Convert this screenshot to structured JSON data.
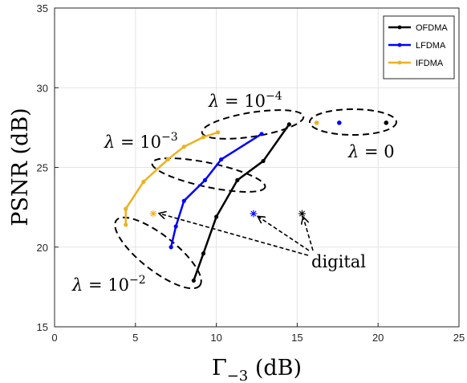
{
  "chart_data": {
    "type": "line",
    "title": "",
    "xlabel": "Γ₋₃ (dB)",
    "ylabel": "PSNR (dB)",
    "xlim": [
      0,
      25
    ],
    "ylim": [
      15,
      35
    ],
    "xticks": [
      0,
      5,
      10,
      15,
      20,
      25
    ],
    "yticks": [
      15,
      20,
      25,
      30,
      35
    ],
    "grid": true,
    "legend_position": "top-right",
    "series": [
      {
        "name": "OFDMA",
        "color": "#000000",
        "x": [
          8.6,
          9.2,
          10.0,
          11.3,
          12.9,
          14.5
        ],
        "y": [
          17.9,
          19.6,
          21.9,
          24.2,
          25.4,
          27.7
        ]
      },
      {
        "name": "LFDMA",
        "color": "#0000ff",
        "x": [
          7.2,
          7.5,
          8.0,
          9.3,
          10.3,
          12.8
        ],
        "y": [
          20.0,
          21.3,
          22.9,
          24.2,
          25.5,
          27.1
        ]
      },
      {
        "name": "IFDMA",
        "color": "#edb120",
        "x": [
          4.4,
          4.4,
          5.5,
          7.0,
          8.0,
          9.2,
          10.1
        ],
        "y": [
          21.4,
          22.4,
          24.1,
          25.5,
          26.3,
          26.9,
          27.2
        ]
      }
    ],
    "lambda_zero_points": [
      {
        "series": "OFDMA",
        "x": 20.5,
        "y": 27.8
      },
      {
        "series": "LFDMA",
        "x": 17.6,
        "y": 27.8
      },
      {
        "series": "IFDMA",
        "x": 16.2,
        "y": 27.8
      }
    ],
    "digital_points": [
      {
        "series": "OFDMA",
        "x": 15.3,
        "y": 22.1
      },
      {
        "series": "LFDMA",
        "x": 12.3,
        "y": 22.1
      },
      {
        "series": "IFDMA",
        "x": 6.1,
        "y": 22.1
      }
    ],
    "annotations": {
      "lambda_0": "λ = 0",
      "lambda_1e4": "λ = 10−4",
      "lambda_1e3": "λ = 10−3",
      "lambda_1e2": "λ = 10−2",
      "digital": "digital"
    }
  }
}
